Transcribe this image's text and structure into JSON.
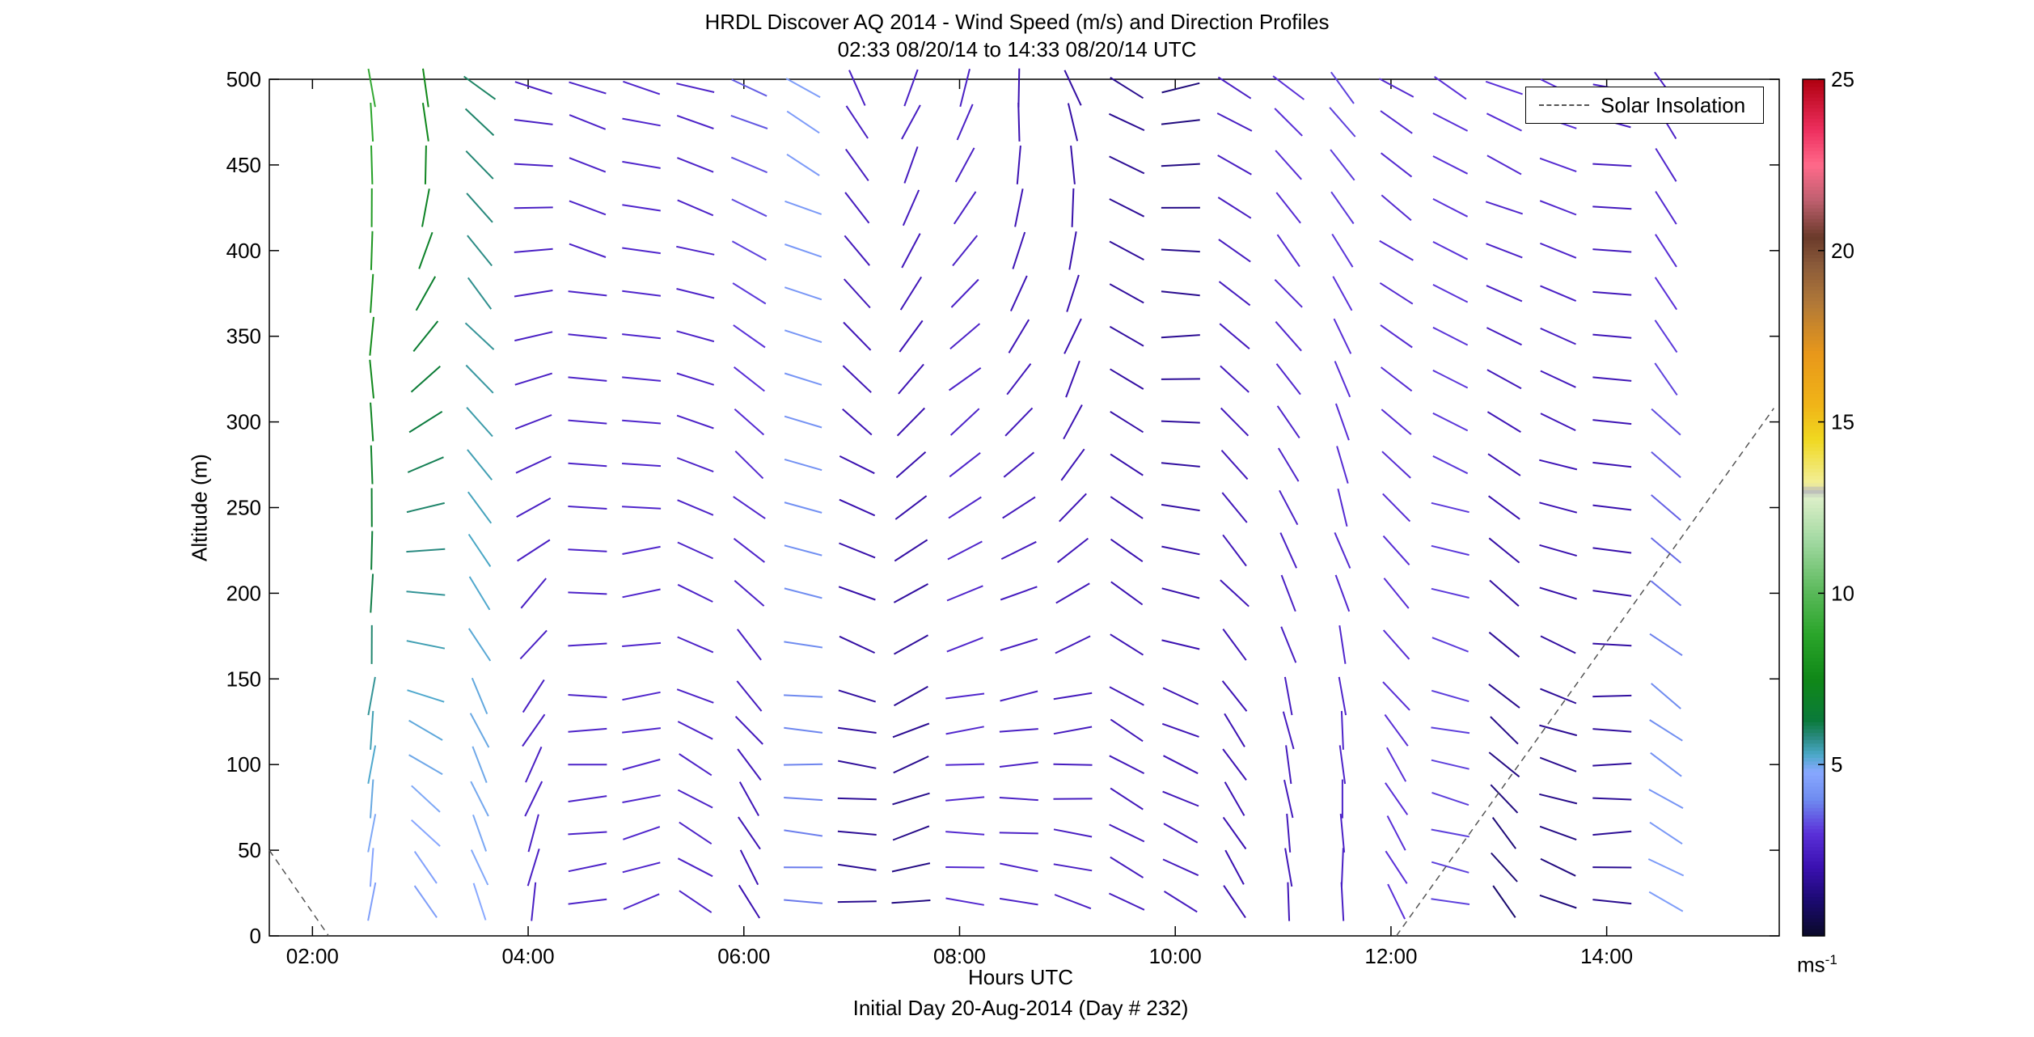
{
  "title": {
    "line1": "HRDL Discover AQ 2014 - Wind Speed (m/s) and Direction Profiles",
    "line2": "02:33 08/20/14 to 14:33 08/20/14  UTC"
  },
  "footer": "Initial Day 20-Aug-2014 (Day # 232)",
  "legend": {
    "label": "Solar Insolation",
    "placement": "top-right",
    "style": "dashed"
  },
  "colorbar": {
    "unit_base": "ms",
    "unit_exp": "-1",
    "min": 0,
    "max": 25,
    "ticks": [
      5,
      10,
      15,
      20,
      25
    ],
    "tick_labels": [
      "5",
      "10",
      "15",
      "20",
      "25"
    ],
    "colormap": [
      {
        "v": 0,
        "c": "#0a0a28"
      },
      {
        "v": 1,
        "c": "#1a0a6e"
      },
      {
        "v": 2,
        "c": "#3a10b0"
      },
      {
        "v": 3,
        "c": "#5a30d8"
      },
      {
        "v": 4,
        "c": "#6f8cf0"
      },
      {
        "v": 4.8,
        "c": "#88a8ff"
      },
      {
        "v": 5.3,
        "c": "#4aa8c8"
      },
      {
        "v": 5.8,
        "c": "#2a8a80"
      },
      {
        "v": 6.3,
        "c": "#0a7a3a"
      },
      {
        "v": 7.5,
        "c": "#108818"
      },
      {
        "v": 8.8,
        "c": "#2aa52a"
      },
      {
        "v": 10,
        "c": "#58b858"
      },
      {
        "v": 11.5,
        "c": "#a0d8a0"
      },
      {
        "v": 12.8,
        "c": "#dcefc8"
      },
      {
        "v": 13.0,
        "c": "#b8b8b8"
      },
      {
        "v": 13.2,
        "c": "#f2ef9a"
      },
      {
        "v": 14.5,
        "c": "#f0d820"
      },
      {
        "v": 15.5,
        "c": "#f0b418"
      },
      {
        "v": 17,
        "c": "#e8981a"
      },
      {
        "v": 18.5,
        "c": "#b07838"
      },
      {
        "v": 19.6,
        "c": "#8a5a3a"
      },
      {
        "v": 20.4,
        "c": "#6a3a2a"
      },
      {
        "v": 21.5,
        "c": "#c06070"
      },
      {
        "v": 22.5,
        "c": "#ff6a8a"
      },
      {
        "v": 23.5,
        "c": "#ee3060"
      },
      {
        "v": 25,
        "c": "#b00010"
      }
    ]
  },
  "chart_data": {
    "type": "scatter",
    "subtype": "wind barbs",
    "xlabel": "Hours UTC",
    "ylabel": "Altitude (m)",
    "xlim": [
      1.6,
      15.6
    ],
    "ylim": [
      0,
      500
    ],
    "xticks": [
      2,
      4,
      6,
      8,
      10,
      12,
      14
    ],
    "xtick_labels": [
      "02:00",
      "04:00",
      "06:00",
      "08:00",
      "10:00",
      "12:00",
      "14:00"
    ],
    "yticks": [
      0,
      50,
      100,
      150,
      200,
      250,
      300,
      350,
      400,
      450,
      500
    ],
    "ytick_labels": [
      "0",
      "50",
      "100",
      "150",
      "200",
      "250",
      "300",
      "350",
      "400",
      "450",
      "500"
    ],
    "grid": false,
    "profile_times": [
      2.55,
      3.05,
      3.55,
      4.05,
      4.55,
      5.05,
      5.55,
      6.05,
      6.55,
      7.05,
      7.55,
      8.05,
      8.55,
      9.05,
      9.55,
      10.05,
      10.55,
      11.05,
      11.55,
      12.05,
      12.55,
      13.05,
      13.55,
      14.05,
      14.55
    ],
    "altitudes": [
      20,
      40,
      60,
      80,
      100,
      120,
      140,
      170,
      200,
      225,
      250,
      275,
      300,
      325,
      350,
      375,
      400,
      425,
      450,
      475,
      495
    ],
    "solar_insolation": {
      "name": "Solar Insolation",
      "segments": [
        {
          "x": [
            1.6,
            2.15
          ],
          "y": [
            50,
            0
          ]
        },
        {
          "x": [
            12.05,
            15.55
          ],
          "y": [
            0,
            308
          ]
        }
      ]
    },
    "profiles": [
      {
        "time": 2.55,
        "start_alt": 20,
        "end_alt": 495,
        "speed_start": 4.5,
        "speed_end": 9.0,
        "dir_start": 190,
        "dir_end": 175
      },
      {
        "time": 3.05,
        "start_alt": 20,
        "end_alt": 495,
        "speed_start": 4.5,
        "speed_end": 7.5,
        "dir_start": 330,
        "dir_end": 170
      },
      {
        "time": 3.55,
        "start_alt": 20,
        "end_alt": 495,
        "speed_start": 4.8,
        "speed_end": 6.0,
        "dir_start": 340,
        "dir_end": 310
      },
      {
        "time": 4.05,
        "start_alt": 20,
        "end_alt": 495,
        "speed_start": 2.5,
        "speed_end": 2.5,
        "dir_start": 190,
        "dir_end": 285
      },
      {
        "time": 4.55,
        "start_alt": 20,
        "end_alt": 495,
        "speed_start": 2.6,
        "speed_end": 2.6,
        "dir_start": 260,
        "dir_end": 290
      },
      {
        "time": 5.05,
        "start_alt": 20,
        "end_alt": 495,
        "speed_start": 2.7,
        "speed_end": 2.7,
        "dir_start": 250,
        "dir_end": 285
      },
      {
        "time": 5.55,
        "start_alt": 20,
        "end_alt": 495,
        "speed_start": 2.6,
        "speed_end": 2.6,
        "dir_start": 300,
        "dir_end": 285
      },
      {
        "time": 6.05,
        "start_alt": 20,
        "end_alt": 495,
        "speed_start": 2.0,
        "speed_end": 3.5,
        "dir_start": 330,
        "dir_end": 290
      },
      {
        "time": 6.55,
        "start_alt": 20,
        "end_alt": 495,
        "speed_start": 3.8,
        "speed_end": 4.5,
        "dir_start": 270,
        "dir_end": 300
      },
      {
        "time": 7.05,
        "start_alt": 20,
        "end_alt": 495,
        "speed_start": 1.5,
        "speed_end": 2.5,
        "dir_start": 270,
        "dir_end": 330
      },
      {
        "time": 7.55,
        "start_alt": 20,
        "end_alt": 495,
        "speed_start": 1.3,
        "speed_end": 2.5,
        "dir_start": 260,
        "dir_end": 200
      },
      {
        "time": 8.05,
        "start_alt": 20,
        "end_alt": 495,
        "speed_start": 2.8,
        "speed_end": 2.5,
        "dir_start": 280,
        "dir_end": 200
      },
      {
        "time": 8.55,
        "start_alt": 20,
        "end_alt": 495,
        "speed_start": 2.6,
        "speed_end": 2.0,
        "dir_start": 285,
        "dir_end": 180
      },
      {
        "time": 9.05,
        "start_alt": 20,
        "end_alt": 495,
        "speed_start": 2.5,
        "speed_end": 1.8,
        "dir_start": 290,
        "dir_end": 160
      },
      {
        "time": 9.55,
        "start_alt": 20,
        "end_alt": 495,
        "speed_start": 2.4,
        "speed_end": 1.5,
        "dir_start": 300,
        "dir_end": 300
      },
      {
        "time": 10.05,
        "start_alt": 20,
        "end_alt": 495,
        "speed_start": 2.4,
        "speed_end": 1.2,
        "dir_start": 300,
        "dir_end": 260
      },
      {
        "time": 10.55,
        "start_alt": 20,
        "end_alt": 495,
        "speed_start": 2.0,
        "speed_end": 2.5,
        "dir_start": 330,
        "dir_end": 300
      },
      {
        "time": 11.05,
        "start_alt": 20,
        "end_alt": 495,
        "speed_start": 2.2,
        "speed_end": 3.0,
        "dir_start": 355,
        "dir_end": 310
      },
      {
        "time": 11.55,
        "start_alt": 20,
        "end_alt": 495,
        "speed_start": 2.5,
        "speed_end": 3.2,
        "dir_start": 0,
        "dir_end": 320
      },
      {
        "time": 12.05,
        "start_alt": 20,
        "end_alt": 495,
        "speed_start": 3.0,
        "speed_end": 2.8,
        "dir_start": 330,
        "dir_end": 300
      },
      {
        "time": 12.55,
        "start_alt": 20,
        "end_alt": 495,
        "speed_start": 3.2,
        "speed_end": 3.0,
        "dir_start": 280,
        "dir_end": 300
      },
      {
        "time": 13.05,
        "start_alt": 20,
        "end_alt": 495,
        "speed_start": 1.0,
        "speed_end": 3.0,
        "dir_start": 320,
        "dir_end": 290
      },
      {
        "time": 13.55,
        "start_alt": 20,
        "end_alt": 495,
        "speed_start": 1.2,
        "speed_end": 3.0,
        "dir_start": 290,
        "dir_end": 290
      },
      {
        "time": 14.05,
        "start_alt": 20,
        "end_alt": 495,
        "speed_start": 1.5,
        "speed_end": 2.5,
        "dir_start": 270,
        "dir_end": 280
      },
      {
        "time": 14.55,
        "start_alt": 20,
        "end_alt": 495,
        "speed_start": 4.5,
        "speed_end": 2.5,
        "dir_start": 300,
        "dir_end": 330
      }
    ]
  }
}
